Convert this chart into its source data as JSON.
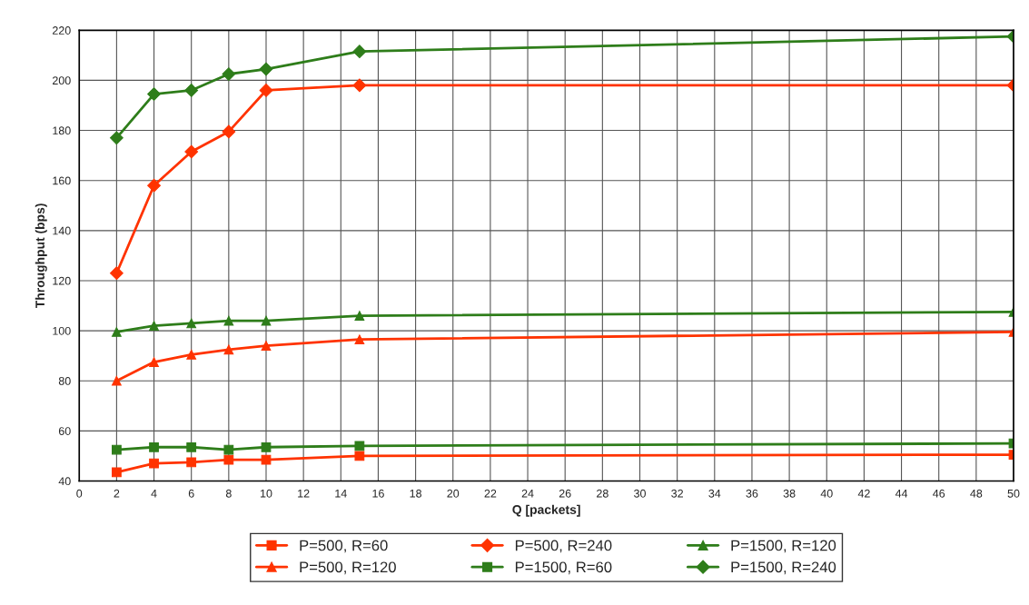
{
  "chart_data": {
    "type": "line",
    "xlabel": "Q [packets]",
    "ylabel": "Throughput (bps)",
    "x": [
      2,
      4,
      6,
      8,
      10,
      15,
      50
    ],
    "xlim": [
      0,
      50
    ],
    "xticks": [
      0,
      2,
      4,
      6,
      8,
      10,
      12,
      14,
      16,
      18,
      20,
      22,
      24,
      26,
      28,
      30,
      32,
      34,
      36,
      38,
      40,
      42,
      44,
      46,
      48,
      50
    ],
    "ylim": [
      40,
      220
    ],
    "yticks": [
      40,
      60,
      80,
      100,
      120,
      140,
      160,
      180,
      200,
      220
    ],
    "grid": true,
    "legend": "bottom",
    "series": [
      {
        "name": "P=500, R=60",
        "color": "#ff3300",
        "marker": "square",
        "values": [
          43.5,
          47,
          47.5,
          48.5,
          48.5,
          50,
          50.5
        ]
      },
      {
        "name": "P=500, R=120",
        "color": "#ff3300",
        "marker": "triangle",
        "values": [
          80,
          87.5,
          90.5,
          92.5,
          94,
          96.5,
          99.5
        ]
      },
      {
        "name": "P=500, R=240",
        "color": "#ff3300",
        "marker": "diamond",
        "values": [
          123,
          158,
          171.5,
          179.5,
          196,
          198,
          198
        ]
      },
      {
        "name": "P=1500, R=60",
        "color": "#2e7d1a",
        "marker": "square",
        "values": [
          52.5,
          53.5,
          53.5,
          52.5,
          53.5,
          54,
          55
        ]
      },
      {
        "name": "P=1500, R=120",
        "color": "#2e7d1a",
        "marker": "triangle",
        "values": [
          99.5,
          102,
          103,
          104,
          104,
          106,
          107.5
        ]
      },
      {
        "name": "P=1500, R=240",
        "color": "#2e7d1a",
        "marker": "diamond",
        "values": [
          177,
          194.5,
          196,
          202.5,
          204.5,
          211.5,
          217.5
        ]
      }
    ]
  }
}
